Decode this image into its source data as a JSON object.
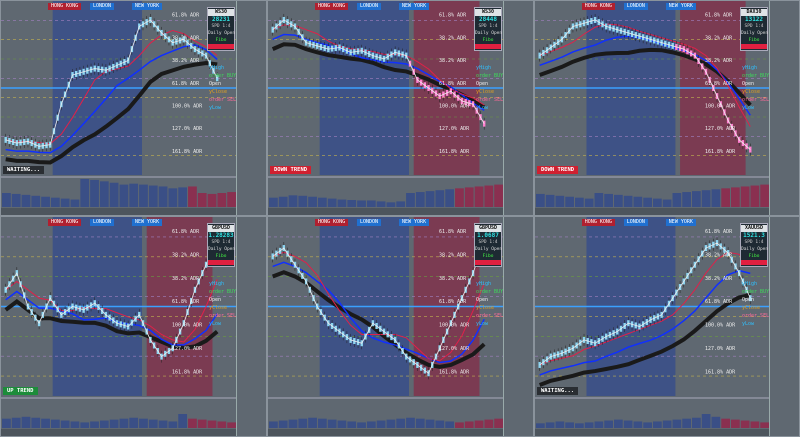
{
  "sessions": [
    "HONG KONG",
    "LONDON",
    "NEW YORK"
  ],
  "levels": [
    "61.8% ADR",
    "38.2% ADR",
    "38.2% ADR",
    "61.8% ADR",
    "100.0% ADR",
    "127.0% ADR",
    "161.8% ADR"
  ],
  "order_labels": {
    "buy": "order BUY",
    "sell": "order SELL",
    "open": "Open",
    "yclose": "yClose",
    "yhigh": "yHigh",
    "ylow": "yLow"
  },
  "info_labels": {
    "daily_open": "Daily Open",
    "ratio": "SPD 1:4",
    "fibo": "Fibo"
  },
  "colors": {
    "bg": "#5f6871",
    "session_blue": "#3e5286",
    "zone_red": "#7b3b52",
    "buy": "#3ddc5a",
    "sell": "#ff6a9a",
    "ma_blue": "#1030ff",
    "ma_black": "#1a1a1a",
    "ma_red": "#e0204a",
    "trend_up": "#1d8c3a",
    "trend_down": "#d02030",
    "trend_wait": "#2a2e33"
  },
  "panels": [
    {
      "symbol": "WS30",
      "price": "28231",
      "trend": "WAITING...",
      "trend_type": "wait",
      "path": [
        82,
        84,
        83,
        86,
        85,
        60,
        42,
        40,
        38,
        39,
        36,
        33,
        12,
        8,
        16,
        22,
        20,
        26,
        30,
        44
      ],
      "osc": [
        30,
        28,
        26,
        24,
        22,
        20,
        18,
        16,
        60,
        58,
        55,
        52,
        48,
        50,
        48,
        46,
        44,
        40,
        42,
        44,
        30,
        28,
        30,
        32
      ]
    },
    {
      "symbol": "WS30",
      "price": "28448",
      "trend": "DOWN TREND",
      "trend_type": "down",
      "path": [
        14,
        8,
        12,
        22,
        24,
        26,
        25,
        28,
        27,
        30,
        32,
        28,
        30,
        45,
        50,
        55,
        52,
        58,
        60,
        72
      ],
      "osc": [
        20,
        22,
        25,
        24,
        22,
        20,
        18,
        16,
        15,
        14,
        14,
        12,
        10,
        12,
        30,
        32,
        34,
        36,
        38,
        40,
        42,
        44,
        46,
        48
      ]
    },
    {
      "symbol": "DAX30",
      "price": "13122",
      "trend": "DOWN TREND",
      "trend_type": "down",
      "path": [
        30,
        25,
        20,
        12,
        10,
        8,
        12,
        14,
        16,
        18,
        20,
        22,
        24,
        26,
        30,
        40,
        55,
        70,
        82,
        88
      ],
      "osc": [
        28,
        26,
        24,
        22,
        20,
        18,
        30,
        28,
        26,
        24,
        22,
        20,
        18,
        16,
        30,
        32,
        34,
        36,
        38,
        40,
        42,
        44,
        46,
        48
      ]
    },
    {
      "symbol": "GBPUSD",
      "price": "1.28283",
      "trend": "UP TREND",
      "trend_type": "up",
      "path": [
        40,
        30,
        50,
        60,
        45,
        55,
        50,
        52,
        48,
        55,
        60,
        62,
        55,
        70,
        80,
        75,
        60,
        40,
        25,
        10
      ],
      "osc": [
        20,
        22,
        24,
        22,
        20,
        18,
        16,
        14,
        12,
        14,
        16,
        18,
        20,
        22,
        20,
        18,
        16,
        14,
        30,
        20,
        18,
        16,
        14,
        12
      ]
    },
    {
      "symbol": "GBPUSD",
      "price": "1.0687",
      "trend": "",
      "trend_type": "none",
      "path": [
        20,
        15,
        25,
        35,
        50,
        60,
        65,
        70,
        72,
        60,
        65,
        70,
        80,
        85,
        90,
        75,
        60,
        45,
        30,
        10
      ],
      "osc": [
        14,
        16,
        18,
        20,
        22,
        20,
        18,
        16,
        14,
        12,
        14,
        16,
        18,
        20,
        22,
        20,
        18,
        16,
        14,
        12,
        14,
        16,
        18,
        20
      ]
    },
    {
      "symbol": "XAUUSD",
      "price": "1521.3",
      "trend": "WAITING...",
      "trend_type": "wait",
      "path": [
        85,
        80,
        78,
        75,
        70,
        72,
        68,
        65,
        60,
        62,
        58,
        55,
        45,
        35,
        25,
        15,
        12,
        18,
        30,
        45
      ],
      "osc": [
        10,
        12,
        14,
        12,
        10,
        12,
        14,
        16,
        18,
        16,
        14,
        12,
        14,
        16,
        18,
        20,
        22,
        30,
        24,
        20,
        18,
        16,
        14,
        12
      ]
    }
  ]
}
